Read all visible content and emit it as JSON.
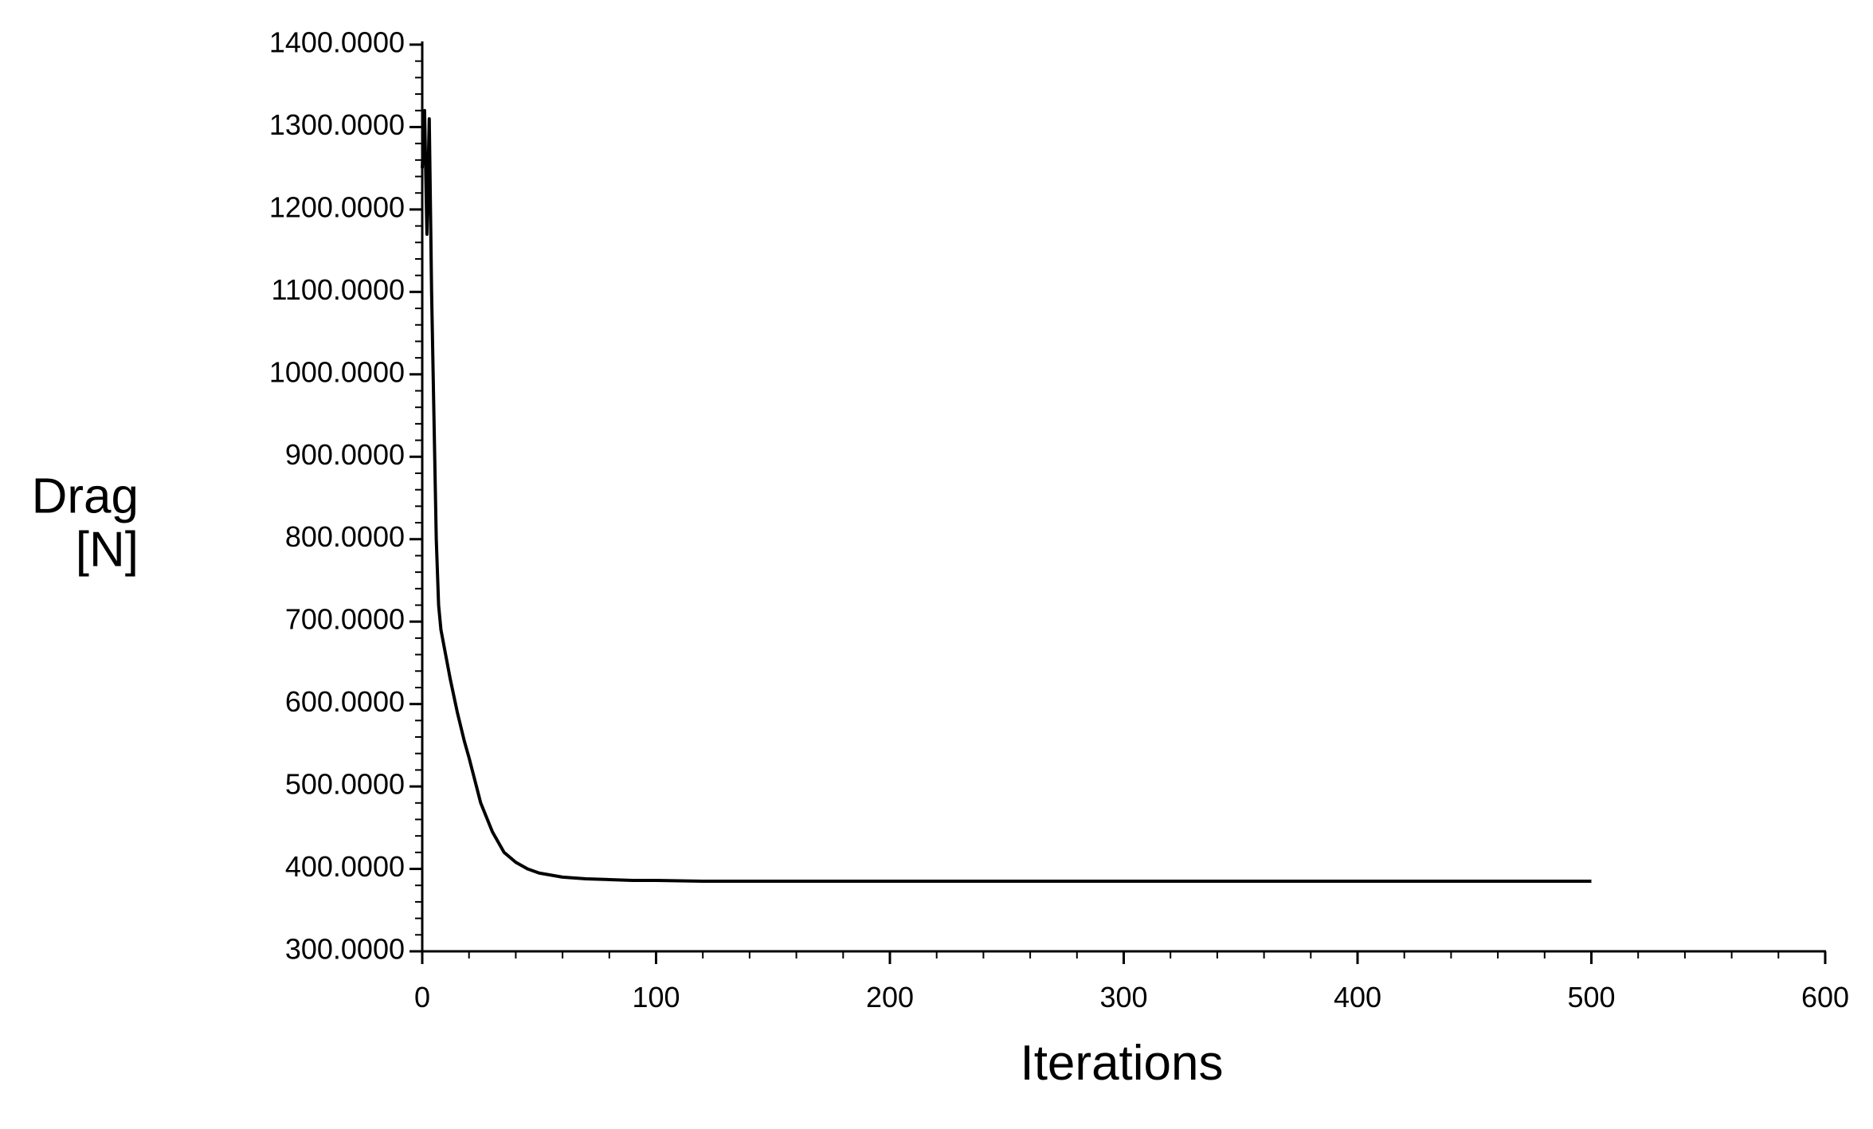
{
  "chart_data": {
    "type": "line",
    "xlabel": "Iterations",
    "ylabel_lines": [
      "Drag",
      "[N]"
    ],
    "xlim": [
      0,
      600
    ],
    "xticks": [
      0,
      100,
      200,
      300,
      400,
      500,
      600
    ],
    "ylim": [
      300,
      1400
    ],
    "yticks": [
      {
        "value": 300,
        "label": "300.0000"
      },
      {
        "value": 400,
        "label": "400.0000"
      },
      {
        "value": 500,
        "label": "500.0000"
      },
      {
        "value": 600,
        "label": "600.0000"
      },
      {
        "value": 700,
        "label": "700.0000"
      },
      {
        "value": 800,
        "label": "800.0000"
      },
      {
        "value": 900,
        "label": "900.0000"
      },
      {
        "value": 1000,
        "label": "1000.0000"
      },
      {
        "value": 1100,
        "label": "1100.0000"
      },
      {
        "value": 1200,
        "label": "1200.0000"
      },
      {
        "value": 1300,
        "label": "1300.0000"
      },
      {
        "value": 1400,
        "label": "1400.0000"
      }
    ],
    "grid": false,
    "series": [
      {
        "color": "#000000",
        "x": [
          0,
          1,
          2,
          3,
          4,
          5,
          6,
          7,
          8,
          10,
          12,
          15,
          18,
          20,
          25,
          30,
          35,
          40,
          45,
          50,
          60,
          70,
          80,
          90,
          100,
          120,
          150,
          200,
          250,
          300,
          400,
          500
        ],
        "values": [
          1250,
          1320,
          1170,
          1310,
          1100,
          950,
          800,
          720,
          690,
          660,
          630,
          590,
          555,
          535,
          480,
          445,
          420,
          408,
          400,
          395,
          390,
          388,
          387,
          386,
          386,
          385,
          385,
          385,
          385,
          385,
          385,
          385
        ]
      }
    ]
  }
}
